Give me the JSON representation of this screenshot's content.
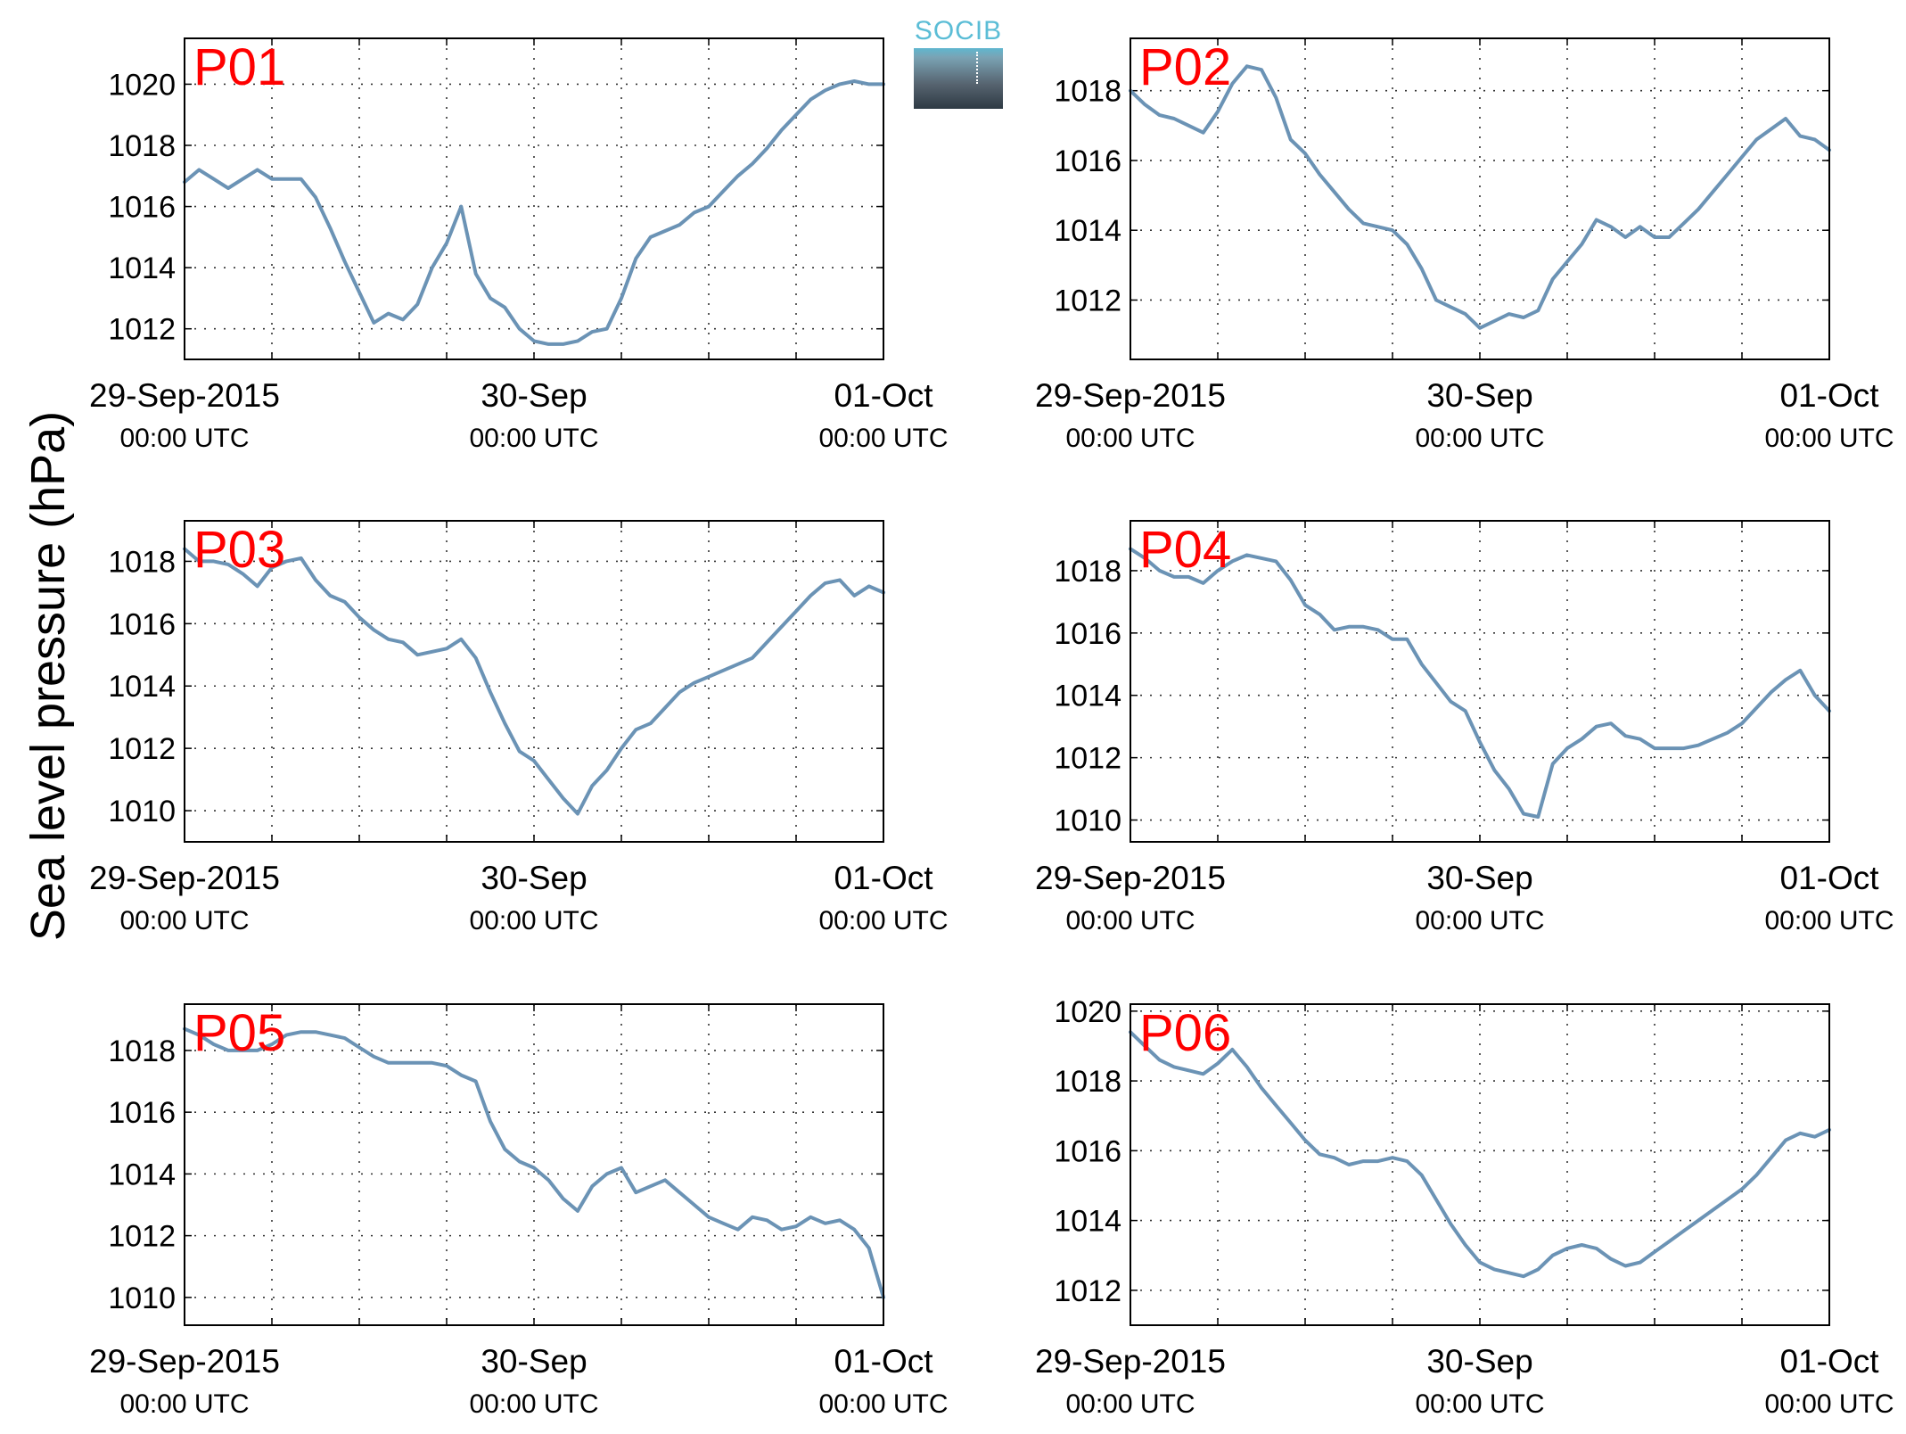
{
  "ylabel": "Sea level pressure (hPa)",
  "logo_text": "SOCIB",
  "line_color": "#6b93b5",
  "panel_label_color": "#ff0000",
  "chart_data": [
    {
      "type": "line",
      "panel": "P01",
      "xlim": [
        0,
        48
      ],
      "ylim": [
        1011,
        1021.5
      ],
      "yticks": [
        1012,
        1014,
        1016,
        1018,
        1020
      ],
      "grid": true,
      "x": [
        0,
        1,
        2,
        3,
        4,
        5,
        6,
        7,
        8,
        9,
        10,
        11,
        12,
        13,
        14,
        15,
        16,
        17,
        18,
        19,
        20,
        21,
        22,
        23,
        24,
        25,
        26,
        27,
        28,
        29,
        30,
        31,
        32,
        33,
        34,
        35,
        36,
        37,
        38,
        39,
        40,
        41,
        42,
        43,
        44,
        45,
        46,
        47,
        48
      ],
      "y": [
        1016.8,
        1017.2,
        1016.9,
        1016.6,
        1016.9,
        1017.2,
        1016.9,
        1016.9,
        1016.9,
        1016.3,
        1015.3,
        1014.2,
        1013.2,
        1012.2,
        1012.5,
        1012.3,
        1012.8,
        1014.0,
        1014.8,
        1016.0,
        1013.8,
        1013.0,
        1012.7,
        1012.0,
        1011.6,
        1011.5,
        1011.5,
        1011.6,
        1011.9,
        1012.0,
        1013.0,
        1014.3,
        1015.0,
        1015.2,
        1015.4,
        1015.8,
        1016.0,
        1016.5,
        1017.0,
        1017.4,
        1017.9,
        1018.5,
        1019.0,
        1019.5,
        1019.8,
        1020.0,
        1020.1,
        1020.0,
        1020.0
      ]
    },
    {
      "type": "line",
      "panel": "P02",
      "xlim": [
        0,
        48
      ],
      "ylim": [
        1010.3,
        1019.5
      ],
      "yticks": [
        1012,
        1014,
        1016,
        1018
      ],
      "grid": true,
      "x": [
        0,
        1,
        2,
        3,
        4,
        5,
        6,
        7,
        8,
        9,
        10,
        11,
        12,
        13,
        14,
        15,
        16,
        17,
        18,
        19,
        20,
        21,
        22,
        23,
        24,
        25,
        26,
        27,
        28,
        29,
        30,
        31,
        32,
        33,
        34,
        35,
        36,
        37,
        38,
        39,
        40,
        41,
        42,
        43,
        44,
        45,
        46,
        47,
        48
      ],
      "y": [
        1018.0,
        1017.6,
        1017.3,
        1017.2,
        1017.0,
        1016.8,
        1017.4,
        1018.2,
        1018.7,
        1018.6,
        1017.8,
        1016.6,
        1016.2,
        1015.6,
        1015.1,
        1014.6,
        1014.2,
        1014.1,
        1014.0,
        1013.6,
        1012.9,
        1012.0,
        1011.8,
        1011.6,
        1011.2,
        1011.4,
        1011.6,
        1011.5,
        1011.7,
        1012.6,
        1013.1,
        1013.6,
        1014.3,
        1014.1,
        1013.8,
        1014.1,
        1013.8,
        1013.8,
        1014.2,
        1014.6,
        1015.1,
        1015.6,
        1016.1,
        1016.6,
        1016.9,
        1017.2,
        1016.7,
        1016.6,
        1016.3
      ]
    },
    {
      "type": "line",
      "panel": "P03",
      "xlim": [
        0,
        48
      ],
      "ylim": [
        1009,
        1019.3
      ],
      "yticks": [
        1010,
        1012,
        1014,
        1016,
        1018
      ],
      "grid": true,
      "x": [
        0,
        1,
        2,
        3,
        4,
        5,
        6,
        7,
        8,
        9,
        10,
        11,
        12,
        13,
        14,
        15,
        16,
        17,
        18,
        19,
        20,
        21,
        22,
        23,
        24,
        25,
        26,
        27,
        28,
        29,
        30,
        31,
        32,
        33,
        34,
        35,
        36,
        37,
        38,
        39,
        40,
        41,
        42,
        43,
        44,
        45,
        46,
        47,
        48
      ],
      "y": [
        1018.4,
        1018.0,
        1018.0,
        1017.9,
        1017.6,
        1017.2,
        1017.8,
        1018.0,
        1018.1,
        1017.4,
        1016.9,
        1016.7,
        1016.2,
        1015.8,
        1015.5,
        1015.4,
        1015.0,
        1015.1,
        1015.2,
        1015.5,
        1014.9,
        1013.8,
        1012.8,
        1011.9,
        1011.6,
        1011.0,
        1010.4,
        1009.9,
        1010.8,
        1011.3,
        1012.0,
        1012.6,
        1012.8,
        1013.3,
        1013.8,
        1014.1,
        1014.3,
        1014.5,
        1014.7,
        1014.9,
        1015.4,
        1015.9,
        1016.4,
        1016.9,
        1017.3,
        1017.4,
        1016.9,
        1017.2,
        1017.0
      ]
    },
    {
      "type": "line",
      "panel": "P04",
      "xlim": [
        0,
        48
      ],
      "ylim": [
        1009.3,
        1019.6
      ],
      "yticks": [
        1010,
        1012,
        1014,
        1016,
        1018
      ],
      "grid": true,
      "x": [
        0,
        1,
        2,
        3,
        4,
        5,
        6,
        7,
        8,
        9,
        10,
        11,
        12,
        13,
        14,
        15,
        16,
        17,
        18,
        19,
        20,
        21,
        22,
        23,
        24,
        25,
        26,
        27,
        28,
        29,
        30,
        31,
        32,
        33,
        34,
        35,
        36,
        37,
        38,
        39,
        40,
        41,
        42,
        43,
        44,
        45,
        46,
        47,
        48
      ],
      "y": [
        1018.7,
        1018.4,
        1018.0,
        1017.8,
        1017.8,
        1017.6,
        1018.0,
        1018.3,
        1018.5,
        1018.4,
        1018.3,
        1017.7,
        1016.9,
        1016.6,
        1016.1,
        1016.2,
        1016.2,
        1016.1,
        1015.8,
        1015.8,
        1015.0,
        1014.4,
        1013.8,
        1013.5,
        1012.5,
        1011.6,
        1011.0,
        1010.2,
        1010.1,
        1011.8,
        1012.3,
        1012.6,
        1013.0,
        1013.1,
        1012.7,
        1012.6,
        1012.3,
        1012.3,
        1012.3,
        1012.4,
        1012.6,
        1012.8,
        1013.1,
        1013.6,
        1014.1,
        1014.5,
        1014.8,
        1014.0,
        1013.5
      ]
    },
    {
      "type": "line",
      "panel": "P05",
      "xlim": [
        0,
        48
      ],
      "ylim": [
        1009.1,
        1019.5
      ],
      "yticks": [
        1010,
        1012,
        1014,
        1016,
        1018
      ],
      "grid": true,
      "x": [
        0,
        1,
        2,
        3,
        4,
        5,
        6,
        7,
        8,
        9,
        10,
        11,
        12,
        13,
        14,
        15,
        16,
        17,
        18,
        19,
        20,
        21,
        22,
        23,
        24,
        25,
        26,
        27,
        28,
        29,
        30,
        31,
        32,
        33,
        34,
        35,
        36,
        37,
        38,
        39,
        40,
        41,
        42,
        43,
        44,
        45,
        46,
        47,
        48
      ],
      "y": [
        1018.7,
        1018.5,
        1018.2,
        1018.0,
        1018.0,
        1018.0,
        1018.2,
        1018.5,
        1018.6,
        1018.6,
        1018.5,
        1018.4,
        1018.1,
        1017.8,
        1017.6,
        1017.6,
        1017.6,
        1017.6,
        1017.5,
        1017.2,
        1017.0,
        1015.7,
        1014.8,
        1014.4,
        1014.2,
        1013.8,
        1013.2,
        1012.8,
        1013.6,
        1014.0,
        1014.2,
        1013.4,
        1013.6,
        1013.8,
        1013.4,
        1013.0,
        1012.6,
        1012.4,
        1012.2,
        1012.6,
        1012.5,
        1012.2,
        1012.3,
        1012.6,
        1012.4,
        1012.5,
        1012.2,
        1011.6,
        1010.0
      ]
    },
    {
      "type": "line",
      "panel": "P06",
      "xlim": [
        0,
        48
      ],
      "ylim": [
        1011,
        1020.2
      ],
      "yticks": [
        1012,
        1014,
        1016,
        1018,
        1020
      ],
      "grid": true,
      "x": [
        0,
        1,
        2,
        3,
        4,
        5,
        6,
        7,
        8,
        9,
        10,
        11,
        12,
        13,
        14,
        15,
        16,
        17,
        18,
        19,
        20,
        21,
        22,
        23,
        24,
        25,
        26,
        27,
        28,
        29,
        30,
        31,
        32,
        33,
        34,
        35,
        36,
        37,
        38,
        39,
        40,
        41,
        42,
        43,
        44,
        45,
        46,
        47,
        48
      ],
      "y": [
        1019.4,
        1019.0,
        1018.6,
        1018.4,
        1018.3,
        1018.2,
        1018.5,
        1018.9,
        1018.4,
        1017.8,
        1017.3,
        1016.8,
        1016.3,
        1015.9,
        1015.8,
        1015.6,
        1015.7,
        1015.7,
        1015.8,
        1015.7,
        1015.3,
        1014.6,
        1013.9,
        1013.3,
        1012.8,
        1012.6,
        1012.5,
        1012.4,
        1012.6,
        1013.0,
        1013.2,
        1013.3,
        1013.2,
        1012.9,
        1012.7,
        1012.8,
        1013.1,
        1013.4,
        1013.7,
        1014.0,
        1014.3,
        1014.6,
        1014.9,
        1015.3,
        1015.8,
        1016.3,
        1016.5,
        1016.4,
        1016.6
      ]
    }
  ],
  "xticks": [
    {
      "x": 0,
      "date": "29-Sep-2015",
      "time": "00:00 UTC"
    },
    {
      "x": 24,
      "date": "30-Sep",
      "time": "00:00 UTC"
    },
    {
      "x": 48,
      "date": "01-Oct",
      "time": "00:00 UTC"
    }
  ],
  "minor_xgrid": [
    6,
    12,
    18,
    30,
    36,
    42
  ]
}
